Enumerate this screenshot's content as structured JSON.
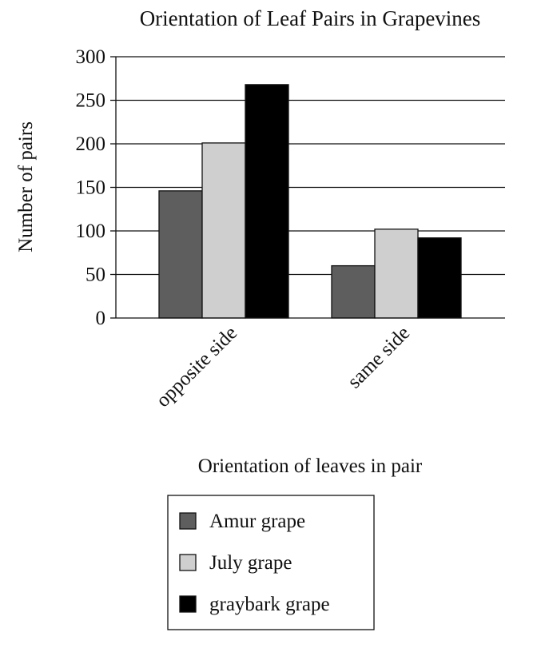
{
  "chart_data": {
    "type": "bar",
    "title": "Orientation of Leaf Pairs in Grapevines",
    "xlabel": "Orientation of leaves in pair",
    "ylabel": "Number of pairs",
    "categories": [
      "opposite side",
      "same side"
    ],
    "series": [
      {
        "name": "Amur grape",
        "values": [
          146,
          60
        ],
        "color": "#5e5e5e"
      },
      {
        "name": "July grape",
        "values": [
          201,
          102
        ],
        "color": "#cfcfcf"
      },
      {
        "name": "graybark grape",
        "values": [
          268,
          92
        ],
        "color": "#000000"
      }
    ],
    "ylim": [
      0,
      300
    ],
    "yticks": [
      "0",
      "50",
      "100",
      "150",
      "200",
      "250",
      "300"
    ],
    "grid": true,
    "legend_position": "bottom"
  }
}
